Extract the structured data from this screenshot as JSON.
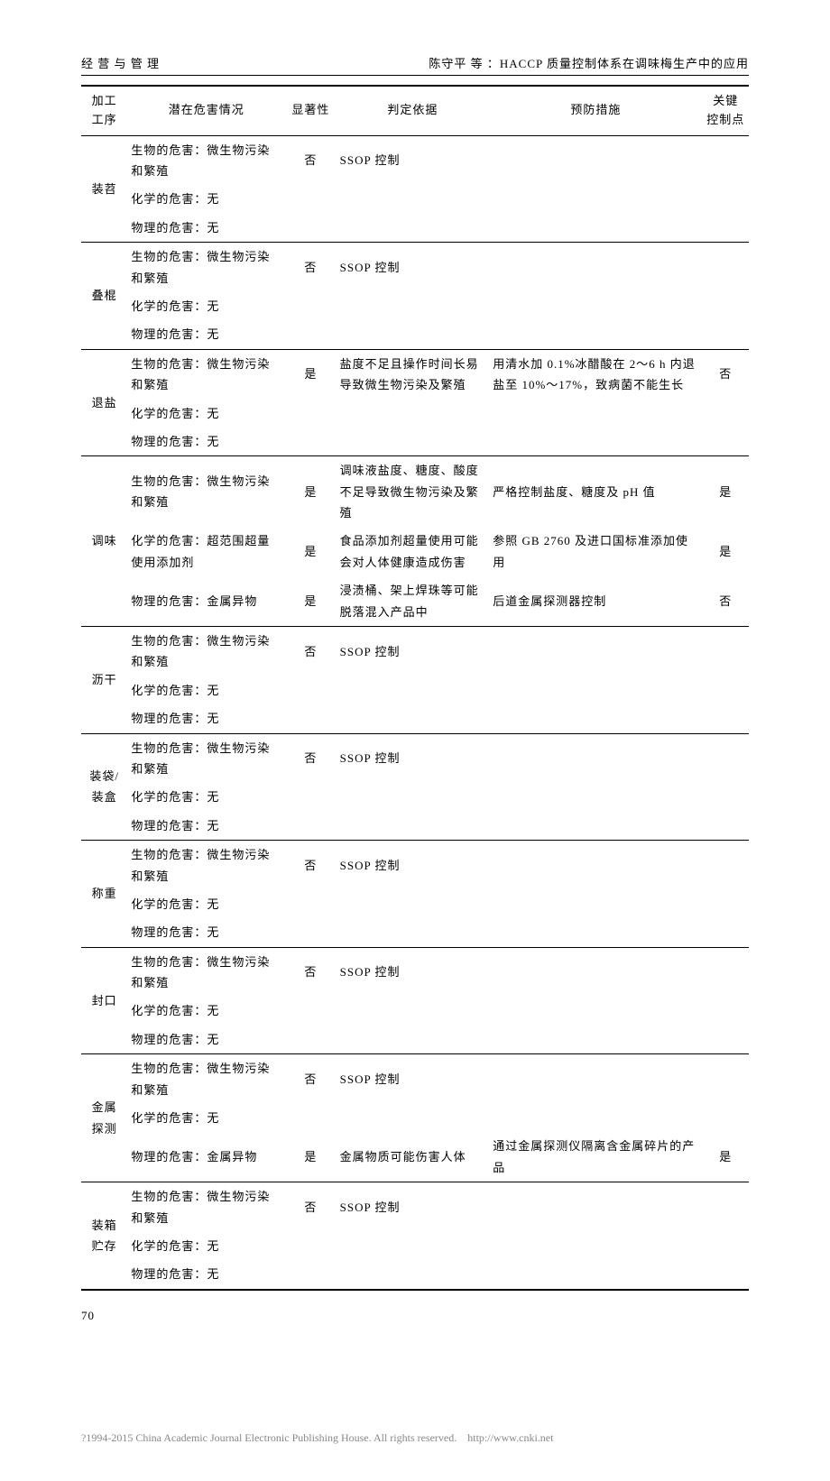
{
  "header": {
    "left": "经 营 与 管 理",
    "right": "陈守平 等 ：HACCP 质量控制体系在调味梅生产中的应用"
  },
  "columns": [
    "加工\n工序",
    "潜在危害情况",
    "显著性",
    "判定依据",
    "预防措施",
    "关键\n控制点"
  ],
  "rows": [
    {
      "proc": "装苕",
      "haz": "生物的危害：微生物污染和繁殖",
      "sig": "否",
      "basis": "SSOP 控制",
      "prev": "",
      "ccp": "",
      "rowspan": 3
    },
    {
      "haz": "化学的危害：无",
      "sig": "",
      "basis": "",
      "prev": "",
      "ccp": ""
    },
    {
      "haz": "物理的危害：无",
      "sig": "",
      "basis": "",
      "prev": "",
      "ccp": ""
    },
    {
      "proc": "叠棍",
      "haz": "生物的危害：微生物污染和繁殖",
      "sig": "否",
      "basis": "SSOP 控制",
      "prev": "",
      "ccp": "",
      "rowspan": 3,
      "sep": true
    },
    {
      "haz": "化学的危害：无",
      "sig": "",
      "basis": "",
      "prev": "",
      "ccp": ""
    },
    {
      "haz": "物理的危害：无",
      "sig": "",
      "basis": "",
      "prev": "",
      "ccp": ""
    },
    {
      "proc": "退盐",
      "haz": "生物的危害：微生物污染和繁殖",
      "sig": "是",
      "basis": "盐度不足且操作时间长易导致微生物污染及繁殖",
      "prev": "用清水加 0.1%冰醋酸在 2～6 h 内退盐至 10%～17%，致病菌不能生长",
      "ccp": "否",
      "rowspan": 3,
      "sep": true
    },
    {
      "haz": "化学的危害：无",
      "sig": "",
      "basis": "",
      "prev": "",
      "ccp": ""
    },
    {
      "haz": "物理的危害：无",
      "sig": "",
      "basis": "",
      "prev": "",
      "ccp": ""
    },
    {
      "proc": "调味",
      "haz": "生物的危害：微生物污染和繁殖",
      "sig": "是",
      "basis": "调味液盐度、糖度、酸度不足导致微生物污染及繁殖",
      "prev": "严格控制盐度、糖度及 pH 值",
      "ccp": "是",
      "rowspan": 3,
      "sep": true
    },
    {
      "haz": "化学的危害：超范围超量使用添加剂",
      "sig": "是",
      "basis": "食品添加剂超量使用可能会对人体健康造成伤害",
      "prev": "参照 GB 2760 及进口国标准添加使用",
      "ccp": "是"
    },
    {
      "haz": "物理的危害：金属异物",
      "sig": "是",
      "basis": "浸渍桶、架上焊珠等可能脱落混入产品中",
      "prev": "后道金属探测器控制",
      "ccp": "否"
    },
    {
      "proc": "沥干",
      "haz": "生物的危害：微生物污染和繁殖",
      "sig": "否",
      "basis": "SSOP 控制",
      "prev": "",
      "ccp": "",
      "rowspan": 3,
      "sep": true
    },
    {
      "haz": "化学的危害：无",
      "sig": "",
      "basis": "",
      "prev": "",
      "ccp": ""
    },
    {
      "haz": "物理的危害：无",
      "sig": "",
      "basis": "",
      "prev": "",
      "ccp": ""
    },
    {
      "proc": "装袋/\n装盒",
      "haz": "生物的危害：微生物污染和繁殖",
      "sig": "否",
      "basis": "SSOP 控制",
      "prev": "",
      "ccp": "",
      "rowspan": 3,
      "sep": true
    },
    {
      "haz": "化学的危害：无",
      "sig": "",
      "basis": "",
      "prev": "",
      "ccp": ""
    },
    {
      "haz": "物理的危害：无",
      "sig": "",
      "basis": "",
      "prev": "",
      "ccp": ""
    },
    {
      "proc": "称重",
      "haz": "生物的危害：微生物污染和繁殖",
      "sig": "否",
      "basis": "SSOP 控制",
      "prev": "",
      "ccp": "",
      "rowspan": 3,
      "sep": true
    },
    {
      "haz": "化学的危害：无",
      "sig": "",
      "basis": "",
      "prev": "",
      "ccp": ""
    },
    {
      "haz": "物理的危害：无",
      "sig": "",
      "basis": "",
      "prev": "",
      "ccp": ""
    },
    {
      "proc": "封口",
      "haz": "生物的危害：微生物污染和繁殖",
      "sig": "否",
      "basis": "SSOP 控制",
      "prev": "",
      "ccp": "",
      "rowspan": 3,
      "sep": true
    },
    {
      "haz": "化学的危害：无",
      "sig": "",
      "basis": "",
      "prev": "",
      "ccp": ""
    },
    {
      "haz": "物理的危害：无",
      "sig": "",
      "basis": "",
      "prev": "",
      "ccp": ""
    },
    {
      "proc": "金属\n探测",
      "haz": "生物的危害：微生物污染和繁殖",
      "sig": "否",
      "basis": "SSOP 控制",
      "prev": "",
      "ccp": "",
      "rowspan": 3,
      "sep": true
    },
    {
      "haz": "化学的危害：无",
      "sig": "",
      "basis": "",
      "prev": "",
      "ccp": ""
    },
    {
      "haz": "物理的危害：金属异物",
      "sig": "是",
      "basis": "金属物质可能伤害人体",
      "prev": "通过金属探测仪隔离含金属碎片的产品",
      "ccp": "是"
    },
    {
      "proc": "装箱\n贮存",
      "haz": "生物的危害：微生物污染和繁殖",
      "sig": "否",
      "basis": "SSOP 控制",
      "prev": "",
      "ccp": "",
      "rowspan": 3,
      "sep": true
    },
    {
      "haz": "化学的危害：无",
      "sig": "",
      "basis": "",
      "prev": "",
      "ccp": ""
    },
    {
      "haz": "物理的危害：无",
      "sig": "",
      "basis": "",
      "prev": "",
      "ccp": "",
      "last": true
    }
  ],
  "pagenum": "70",
  "footer": {
    "text": "?1994-2015 China Academic Journal Electronic Publishing House. All rights reserved.",
    "link": "http://www.cnki.net"
  }
}
